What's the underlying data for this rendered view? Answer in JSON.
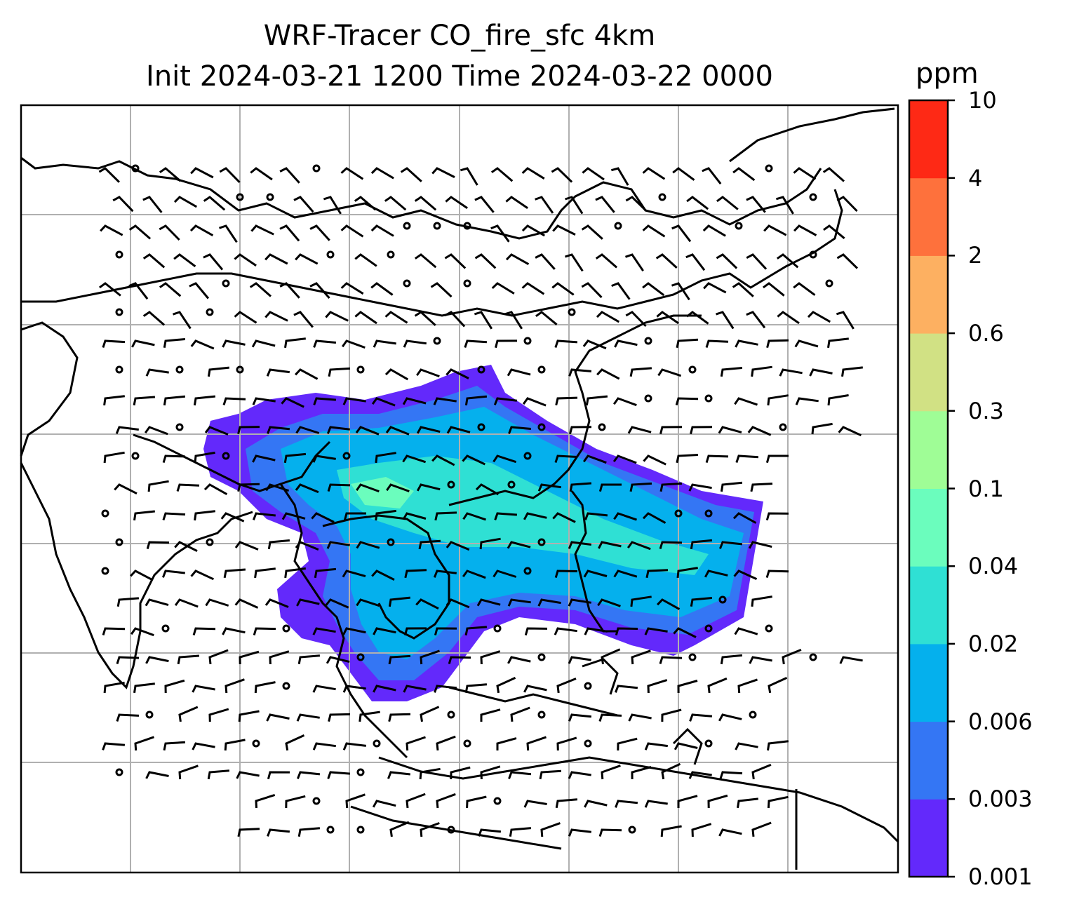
{
  "title": {
    "line1": "WRF-Tracer CO_fire_sfc 4km",
    "line2": "Init 2024-03-21 1200 Time 2024-03-22 0000"
  },
  "colorbar": {
    "unit": "ppm",
    "levels": [
      "0.001",
      "0.003",
      "0.006",
      "0.02",
      "0.04",
      "0.1",
      "0.3",
      "0.6",
      "2",
      "4",
      "10"
    ],
    "colors": [
      "#6329fb",
      "#3476f4",
      "#05b0ed",
      "#2fe0d4",
      "#6bfdbd",
      "#9ffd96",
      "#d1e184",
      "#fdb061",
      "#fe713c",
      "#fe2915"
    ]
  },
  "map": {
    "grid": "on",
    "coastline_color": "#000000",
    "wind_barbs": "black",
    "plume_colors": {
      "outer": "#6329fb",
      "mid": "#3476f4",
      "core": "#05b0ed",
      "inner": "#2fe0d4",
      "peak": "#6bfdbd"
    }
  }
}
